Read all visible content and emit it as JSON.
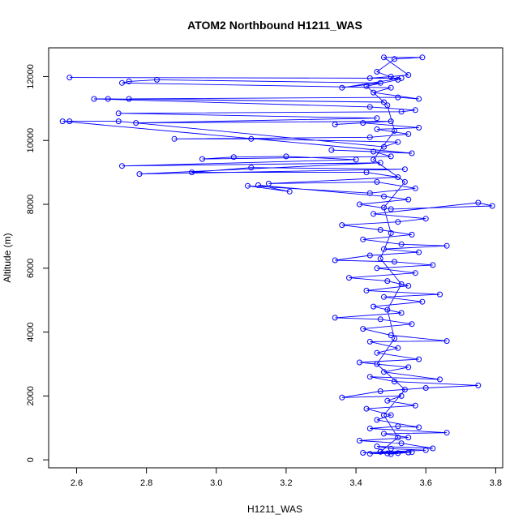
{
  "chart_data": {
    "type": "line",
    "title": "ATOM2 Northbound H1211_WAS",
    "xlabel": "H1211_WAS",
    "ylabel": "Altitude (m)",
    "xlim": [
      2.52,
      3.82
    ],
    "ylim": [
      -250,
      12900
    ],
    "xticks": [
      "2.6",
      "2.8",
      "3.0",
      "3.2",
      "3.4",
      "3.6",
      "3.8"
    ],
    "yticks": [
      "0",
      "2000",
      "4000",
      "6000",
      "8000",
      "10000",
      "12000"
    ],
    "grid": false,
    "colors": {
      "series": "#0000ff",
      "axis": "#000000"
    },
    "series": [
      {
        "name": "",
        "marker": "open-circle",
        "points": [
          [
            3.49,
            200
          ],
          [
            3.44,
            190
          ],
          [
            3.52,
            210
          ],
          [
            3.47,
            260
          ],
          [
            3.56,
            240
          ],
          [
            3.42,
            220
          ],
          [
            3.6,
            300
          ],
          [
            3.5,
            350
          ],
          [
            3.46,
            420
          ],
          [
            3.62,
            360
          ],
          [
            3.53,
            520
          ],
          [
            3.41,
            600
          ],
          [
            3.55,
            700
          ],
          [
            3.48,
            820
          ],
          [
            3.66,
            850
          ],
          [
            3.44,
            980
          ],
          [
            3.52,
            1050
          ],
          [
            3.58,
            1020
          ],
          [
            3.46,
            1250
          ],
          [
            3.5,
            1400
          ],
          [
            3.43,
            1600
          ],
          [
            3.57,
            1700
          ],
          [
            3.49,
            1850
          ],
          [
            3.53,
            2000
          ],
          [
            3.36,
            1950
          ],
          [
            3.47,
            2150
          ],
          [
            3.6,
            2250
          ],
          [
            3.75,
            2330
          ],
          [
            3.51,
            2450
          ],
          [
            3.44,
            2600
          ],
          [
            3.64,
            2520
          ],
          [
            3.48,
            2750
          ],
          [
            3.55,
            2900
          ],
          [
            3.41,
            3050
          ],
          [
            3.58,
            3150
          ],
          [
            3.46,
            3350
          ],
          [
            3.52,
            3500
          ],
          [
            3.44,
            3700
          ],
          [
            3.66,
            3720
          ],
          [
            3.5,
            3900
          ],
          [
            3.42,
            4100
          ],
          [
            3.56,
            4250
          ],
          [
            3.47,
            4400
          ],
          [
            3.34,
            4450
          ],
          [
            3.53,
            4600
          ],
          [
            3.45,
            4800
          ],
          [
            3.59,
            4950
          ],
          [
            3.48,
            5100
          ],
          [
            3.64,
            5180
          ],
          [
            3.43,
            5300
          ],
          [
            3.55,
            5450
          ],
          [
            3.49,
            5600
          ],
          [
            3.38,
            5700
          ],
          [
            3.57,
            5850
          ],
          [
            3.46,
            6000
          ],
          [
            3.62,
            6100
          ],
          [
            3.51,
            6200
          ],
          [
            3.34,
            6250
          ],
          [
            3.44,
            6400
          ],
          [
            3.58,
            6500
          ],
          [
            3.48,
            6600
          ],
          [
            3.66,
            6700
          ],
          [
            3.53,
            6750
          ],
          [
            3.42,
            6900
          ],
          [
            3.56,
            7050
          ],
          [
            3.47,
            7200
          ],
          [
            3.36,
            7350
          ],
          [
            3.52,
            7450
          ],
          [
            3.6,
            7550
          ],
          [
            3.45,
            7700
          ],
          [
            3.75,
            8050
          ],
          [
            3.79,
            7950
          ],
          [
            3.5,
            7850
          ],
          [
            3.41,
            8000
          ],
          [
            3.55,
            8150
          ],
          [
            3.48,
            8250
          ],
          [
            3.12,
            8600
          ],
          [
            3.21,
            8400
          ],
          [
            3.09,
            8580
          ],
          [
            3.44,
            8350
          ],
          [
            3.57,
            8500
          ],
          [
            3.46,
            8700
          ],
          [
            3.15,
            8650
          ],
          [
            3.52,
            8850
          ],
          [
            3.43,
            9000
          ],
          [
            2.93,
            9000
          ],
          [
            3.1,
            9150
          ],
          [
            3.54,
            9100
          ],
          [
            2.78,
            8950
          ],
          [
            3.47,
            9300
          ],
          [
            2.73,
            9200
          ],
          [
            3.4,
            9400
          ],
          [
            3.2,
            9500
          ],
          [
            3.05,
            9480
          ],
          [
            2.96,
            9420
          ],
          [
            3.5,
            9500
          ],
          [
            3.45,
            9650
          ],
          [
            3.33,
            9700
          ],
          [
            3.56,
            9600
          ],
          [
            2.56,
            10600
          ],
          [
            2.58,
            10600
          ],
          [
            2.72,
            10600
          ],
          [
            3.48,
            9800
          ],
          [
            3.52,
            9950
          ],
          [
            3.1,
            10050
          ],
          [
            2.88,
            10050
          ],
          [
            3.44,
            10100
          ],
          [
            3.55,
            10200
          ],
          [
            3.46,
            10350
          ],
          [
            3.58,
            10400
          ],
          [
            3.42,
            10550
          ],
          [
            3.34,
            10500
          ],
          [
            3.5,
            10600
          ],
          [
            2.77,
            10550
          ],
          [
            3.46,
            10700
          ],
          [
            2.72,
            10850
          ],
          [
            3.53,
            10900
          ],
          [
            3.57,
            10950
          ],
          [
            3.44,
            11050
          ],
          [
            2.65,
            11300
          ],
          [
            2.69,
            11300
          ],
          [
            3.48,
            11200
          ],
          [
            2.75,
            11300
          ],
          [
            3.52,
            11350
          ],
          [
            3.58,
            11300
          ],
          [
            3.45,
            11500
          ],
          [
            3.5,
            11650
          ],
          [
            2.73,
            11800
          ],
          [
            2.75,
            11850
          ],
          [
            2.83,
            11900
          ],
          [
            3.47,
            11800
          ],
          [
            3.36,
            11650
          ],
          [
            3.53,
            11950
          ],
          [
            2.58,
            11970
          ],
          [
            3.44,
            11950
          ],
          [
            3.5,
            12000
          ],
          [
            3.55,
            12050
          ],
          [
            3.48,
            12600
          ],
          [
            3.59,
            12600
          ],
          [
            3.51,
            12550
          ],
          [
            3.46,
            12150
          ],
          [
            3.52,
            11900
          ],
          [
            3.43,
            11700
          ],
          [
            3.49,
            11100
          ],
          [
            3.51,
            10300
          ],
          [
            3.45,
            9400
          ],
          [
            3.54,
            8700
          ],
          [
            3.48,
            7900
          ],
          [
            3.5,
            7100
          ],
          [
            3.47,
            6300
          ],
          [
            3.53,
            5500
          ],
          [
            3.49,
            4700
          ],
          [
            3.51,
            3800
          ],
          [
            3.46,
            3000
          ],
          [
            3.54,
            2200
          ],
          [
            3.48,
            1400
          ],
          [
            3.52,
            700
          ],
          [
            3.47,
            250
          ],
          [
            3.5,
            180
          ],
          [
            3.55,
            230
          ]
        ]
      }
    ]
  }
}
